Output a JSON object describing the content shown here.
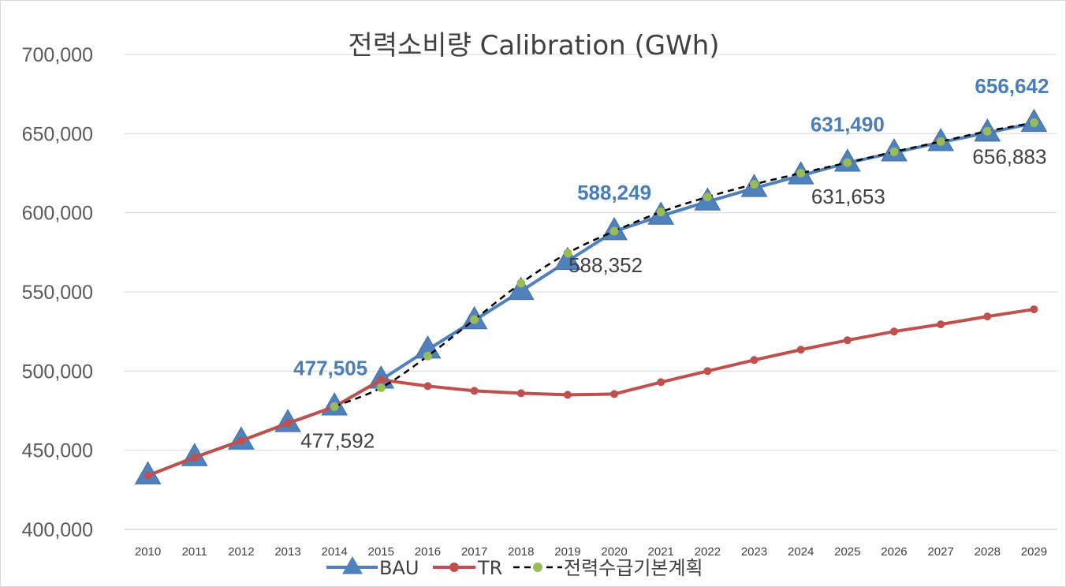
{
  "chart_data": {
    "type": "line",
    "title": "전력소비량 Calibration (GWh)",
    "xlabel": "",
    "ylabel": "",
    "ylim": [
      400000,
      700000
    ],
    "yticks": [
      "400,000",
      "450,000",
      "500,000",
      "550,000",
      "600,000",
      "650,000",
      "700,000"
    ],
    "grid": true,
    "legend_position": "bottom",
    "categories": [
      "2010",
      "2011",
      "2012",
      "2013",
      "2014",
      "2015",
      "2016",
      "2017",
      "2018",
      "2019",
      "2020",
      "2021",
      "2022",
      "2023",
      "2024",
      "2025",
      "2026",
      "2027",
      "2028",
      "2029"
    ],
    "series": [
      {
        "name": "BAU",
        "color": "#4f81bd",
        "marker": "triangle",
        "values": [
          434000,
          445500,
          456000,
          467000,
          477505,
          494500,
          513500,
          532000,
          550500,
          569500,
          588249,
          598000,
          607000,
          615500,
          623500,
          631490,
          638000,
          644500,
          650500,
          656642
        ]
      },
      {
        "name": "TR",
        "color": "#c0504d",
        "marker": "circle",
        "values": [
          434000,
          445500,
          456000,
          467000,
          477505,
          494500,
          490500,
          487500,
          486000,
          485000,
          485500,
          493000,
          500000,
          507000,
          513500,
          519500,
          525000,
          529500,
          534500,
          539000
        ]
      },
      {
        "name": "전력수급기본계획",
        "color": "#9bbb59",
        "line_color": "#000000",
        "marker": "circle",
        "dashed": true,
        "values": [
          null,
          null,
          null,
          null,
          477592,
          489500,
          509500,
          532500,
          555500,
          574500,
          588352,
          600500,
          610000,
          618000,
          625000,
          631653,
          638500,
          645000,
          651500,
          656883
        ]
      }
    ],
    "data_labels": [
      {
        "series": "BAU",
        "category": "2014",
        "text": "477,505"
      },
      {
        "series": "BAU",
        "category": "2020",
        "text": "588,249"
      },
      {
        "series": "BAU",
        "category": "2025",
        "text": "631,490"
      },
      {
        "series": "BAU",
        "category": "2029",
        "text": "656,642"
      },
      {
        "series": "전력수급기본계획",
        "category": "2014",
        "text": "477,592"
      },
      {
        "series": "전력수급기본계획",
        "category": "2020",
        "text": "588,352"
      },
      {
        "series": "전력수급기본계획",
        "category": "2025",
        "text": "631,653"
      },
      {
        "series": "전력수급기본계획",
        "category": "2029",
        "text": "656,883"
      }
    ]
  }
}
